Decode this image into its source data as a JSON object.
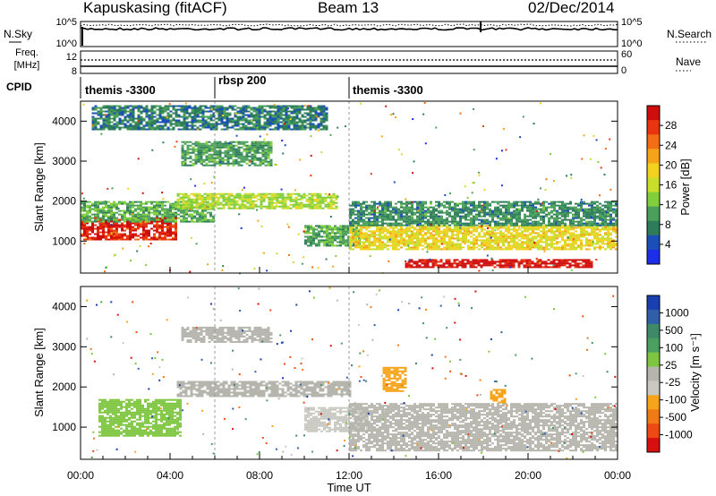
{
  "header": {
    "station": "Kapuskasing (fitACF)",
    "beam": "Beam 13",
    "date": "02/Dec/2014"
  },
  "noise_panel": {
    "left_label": "N.Sky",
    "left_ticks": [
      "10^5",
      "10^0"
    ],
    "right_ticks": [
      "10^5",
      "10^0"
    ],
    "right_label": "N.Search",
    "right_label_style": "dotted"
  },
  "freq_panel": {
    "left_label_lines": [
      "Freq.",
      "[MHz]"
    ],
    "left_ticks": [
      "12",
      "8"
    ],
    "right_ticks": [
      "60",
      "0"
    ],
    "right_label": "Nave",
    "right_label_style": "dotted"
  },
  "cpid": {
    "label": "CPID",
    "segments": [
      {
        "start_hour": 0,
        "name": "themis -3300"
      },
      {
        "start_hour": 6,
        "name": "rbsp 200"
      },
      {
        "start_hour": 12,
        "name": "themis -3300"
      }
    ]
  },
  "x_axis": {
    "label": "Time UT",
    "range_hours": [
      0,
      24
    ],
    "tick_labels": [
      "00:00",
      "04:00",
      "08:00",
      "12:00",
      "16:00",
      "20:00",
      "00:00"
    ],
    "tick_hours": [
      0,
      4,
      8,
      12,
      16,
      20,
      24
    ]
  },
  "panels": [
    {
      "id": "power",
      "ylabel": "Slant Range [km]",
      "yticks": [
        "1000",
        "2000",
        "3000",
        "4000"
      ],
      "colorbar_label": "Power [dB]",
      "colorbar_ticks": [
        "4",
        "8",
        "12",
        "16",
        "20",
        "24",
        "28"
      ],
      "colorbar_colors": [
        "#1d2ee8",
        "#1a4fb8",
        "#2e7d5a",
        "#4aa05a",
        "#7fce3a",
        "#c8de2a",
        "#f2d21e",
        "#f5a419",
        "#f26d14",
        "#e8340f",
        "#cf0d0d"
      ]
    },
    {
      "id": "velocity",
      "ylabel": "Slant Range [km]",
      "yticks": [
        "1000",
        "2000",
        "3000",
        "4000"
      ],
      "colorbar_label": "Velocity [m s⁻¹]",
      "colorbar_ticks": [
        "1000",
        "500",
        "100",
        "25",
        "-25",
        "-100",
        "-500",
        "-1000"
      ],
      "colorbar_colors": [
        "#1a3fb0",
        "#2f5fa8",
        "#3e8a68",
        "#4aa060",
        "#7ec63f",
        "#b5b5ad",
        "#c9c9c2",
        "#f5a41c",
        "#f07a16",
        "#ec4a12",
        "#d80f0f"
      ]
    }
  ],
  "chart_data": [
    {
      "type": "heatmap",
      "title": "Kapuskasing (fitACF) Beam 13 02/Dec/2014",
      "xlabel": "Time UT",
      "ylabel": "Slant Range [km]",
      "xlim": [
        0,
        24
      ],
      "ylim": [
        200,
        4500
      ],
      "colorbar": "Power [dB]",
      "clim": [
        0,
        30
      ],
      "regions": [
        {
          "t": [
            0.0,
            4.3
          ],
          "range": [
            1050,
            1600
          ],
          "value": 27
        },
        {
          "t": [
            0.0,
            6.0
          ],
          "range": [
            1500,
            2000
          ],
          "value": 10
        },
        {
          "t": [
            4.3,
            11.5
          ],
          "range": [
            1800,
            2200
          ],
          "value": 14
        },
        {
          "t": [
            4.5,
            8.5
          ],
          "range": [
            2900,
            3500
          ],
          "value": 9
        },
        {
          "t": [
            10.0,
            12.5
          ],
          "range": [
            900,
            1400
          ],
          "value": 10
        },
        {
          "t": [
            12.0,
            24.0
          ],
          "range": [
            800,
            1400
          ],
          "value": 17
        },
        {
          "t": [
            12.0,
            24.0
          ],
          "range": [
            1400,
            2000
          ],
          "value": 8
        },
        {
          "t": [
            14.5,
            22.8
          ],
          "range": [
            350,
            550
          ],
          "value": 29
        },
        {
          "t": [
            0.5,
            11.0
          ],
          "range": [
            3800,
            4400
          ],
          "value": 7
        }
      ]
    },
    {
      "type": "heatmap",
      "title": "Kapuskasing (fitACF) Beam 13 02/Dec/2014",
      "xlabel": "Time UT",
      "ylabel": "Slant Range [km]",
      "xlim": [
        0,
        24
      ],
      "ylim": [
        200,
        4500
      ],
      "colorbar": "Velocity [m s⁻¹]",
      "clim": [
        -1000,
        1000
      ],
      "regions": [
        {
          "t": [
            0.8,
            4.5
          ],
          "range": [
            800,
            1700
          ],
          "value": 150
        },
        {
          "t": [
            4.3,
            12.0
          ],
          "range": [
            1750,
            2150
          ],
          "value": 0
        },
        {
          "t": [
            4.5,
            8.5
          ],
          "range": [
            3100,
            3500
          ],
          "value": 0
        },
        {
          "t": [
            10.0,
            12.8
          ],
          "range": [
            900,
            1500
          ],
          "value": -150
        },
        {
          "t": [
            12.0,
            24.0
          ],
          "range": [
            400,
            1600
          ],
          "value": 0
        },
        {
          "t": [
            13.5,
            14.5
          ],
          "range": [
            1900,
            2500
          ],
          "value": -300
        },
        {
          "t": [
            18.3,
            19.0
          ],
          "range": [
            1600,
            1950
          ],
          "value": -300
        }
      ]
    }
  ]
}
